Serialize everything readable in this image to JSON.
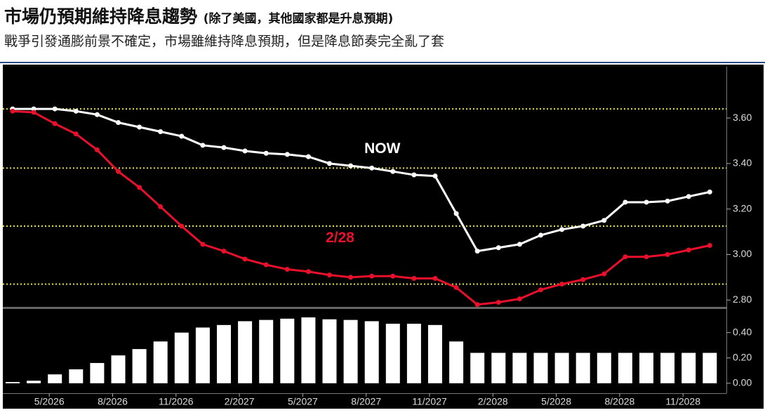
{
  "header": {
    "title": "市場仍預期維持降息趨勢",
    "title_note": "(除了美國，其他國家都是升息預期)",
    "subtitle": "戰爭引發通膨前景不確定，市場雖維持降息預期，但是降息節奏完全亂了套"
  },
  "chart_data": [
    {
      "type": "line",
      "ylim": [
        2.77,
        3.81
      ],
      "yticks": [
        {
          "value": 2.8,
          "label": "2.80"
        },
        {
          "value": 3.0,
          "label": "3.00"
        },
        {
          "value": 3.2,
          "label": "3.20"
        },
        {
          "value": 3.4,
          "label": "3.40"
        },
        {
          "value": 3.6,
          "label": "3.60"
        }
      ],
      "hlines": [
        3.64,
        3.38,
        3.125,
        2.87
      ],
      "hline_color": "#e8e030",
      "series": [
        {
          "name": "NOW",
          "color": "#ffffff",
          "values": [
            3.64,
            3.64,
            3.64,
            3.63,
            3.615,
            3.58,
            3.56,
            3.54,
            3.52,
            3.48,
            3.47,
            3.455,
            3.445,
            3.44,
            3.43,
            3.4,
            3.39,
            3.38,
            3.365,
            3.35,
            3.345,
            3.18,
            3.015,
            3.03,
            3.045,
            3.085,
            3.11,
            3.125,
            3.15,
            3.23,
            3.23,
            3.235,
            3.255,
            3.275
          ]
        },
        {
          "name": "2/28",
          "color": "#e8102a",
          "values": [
            3.63,
            3.625,
            3.575,
            3.53,
            3.46,
            3.365,
            3.295,
            3.21,
            3.125,
            3.045,
            3.015,
            2.98,
            2.955,
            2.935,
            2.925,
            2.91,
            2.9,
            2.905,
            2.905,
            2.895,
            2.895,
            2.855,
            2.78,
            2.79,
            2.805,
            2.845,
            2.87,
            2.89,
            2.915,
            2.99,
            2.99,
            3.0,
            3.02,
            3.04
          ]
        }
      ]
    },
    {
      "type": "bar",
      "color": "#ffffff",
      "categories": [
        null,
        null,
        "5/2026",
        null,
        null,
        "8/2026",
        null,
        null,
        "11/2026",
        null,
        null,
        "2/2027",
        null,
        null,
        "5/2027",
        null,
        null,
        "8/2027",
        null,
        null,
        "11/2027",
        null,
        null,
        "2/2028",
        null,
        null,
        "5/2028",
        null,
        null,
        "8/2028",
        null,
        null,
        "11/2028",
        null
      ],
      "values": [
        0.01,
        0.02,
        0.07,
        0.11,
        0.16,
        0.22,
        0.27,
        0.33,
        0.4,
        0.44,
        0.46,
        0.49,
        0.5,
        0.51,
        0.52,
        0.505,
        0.5,
        0.49,
        0.47,
        0.47,
        0.46,
        0.33,
        0.24,
        0.24,
        0.24,
        0.24,
        0.24,
        0.24,
        0.24,
        0.24,
        0.24,
        0.24,
        0.24,
        0.24
      ],
      "ylim": [
        -0.04,
        0.57
      ],
      "yticks": [
        {
          "value": 0,
          "label": "0.00"
        },
        {
          "value": 0.2,
          "label": "0.20"
        },
        {
          "value": 0.4,
          "label": "0.40"
        }
      ]
    }
  ]
}
